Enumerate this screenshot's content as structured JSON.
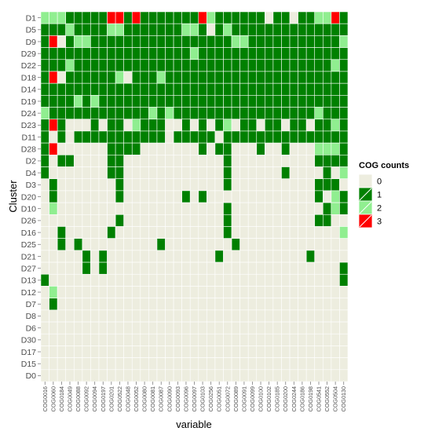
{
  "chart_data": {
    "type": "heatmap",
    "title": "",
    "xlabel": "variable",
    "ylabel": "Cluster",
    "x": [
      "COG0016",
      "COG0060",
      "COG0184",
      "COG0049",
      "COG0088",
      "COG0092",
      "COG0094",
      "COG0197",
      "COG0201",
      "COG0522",
      "COG0048",
      "COG0052",
      "COG0080",
      "COG0081",
      "COG0087",
      "COG0090",
      "COG0093",
      "COG0096",
      "COG0097",
      "COG0103",
      "COG0256",
      "COG0051",
      "COG0072",
      "COG0089",
      "COG0091",
      "COG0099",
      "COG0100",
      "COG0102",
      "COG0185",
      "COG0200",
      "COG0244",
      "COG0186",
      "COG0198",
      "COG0541",
      "COG0552",
      "COG0504",
      "COG0130"
    ],
    "y": [
      "D1",
      "D5",
      "D9",
      "D29",
      "D22",
      "D18",
      "D14",
      "D19",
      "D24",
      "D23",
      "D11",
      "D28",
      "D2",
      "D4",
      "D3",
      "D20",
      "D10",
      "D26",
      "D16",
      "D25",
      "D21",
      "D27",
      "D13",
      "D12",
      "D7",
      "D8",
      "D6",
      "D30",
      "D17",
      "D15",
      "D0"
    ],
    "values": [
      [
        2,
        2,
        2,
        1,
        1,
        1,
        1,
        1,
        3,
        3,
        1,
        3,
        1,
        1,
        1,
        1,
        1,
        1,
        1,
        3,
        2,
        1,
        1,
        1,
        1,
        1,
        1,
        0,
        1,
        1,
        0,
        1,
        1,
        2,
        2,
        3,
        1
      ],
      [
        1,
        1,
        1,
        2,
        1,
        1,
        1,
        1,
        2,
        2,
        1,
        1,
        1,
        1,
        1,
        1,
        1,
        2,
        2,
        1,
        0,
        1,
        2,
        1,
        1,
        1,
        1,
        1,
        1,
        1,
        1,
        1,
        1,
        1,
        1,
        1,
        1
      ],
      [
        1,
        3,
        0,
        1,
        2,
        2,
        1,
        1,
        1,
        1,
        1,
        1,
        1,
        1,
        1,
        1,
        1,
        1,
        1,
        1,
        1,
        1,
        1,
        2,
        2,
        1,
        1,
        1,
        1,
        1,
        1,
        1,
        1,
        1,
        1,
        1,
        2
      ],
      [
        1,
        1,
        1,
        1,
        1,
        1,
        1,
        1,
        1,
        1,
        1,
        1,
        1,
        1,
        1,
        1,
        1,
        1,
        2,
        1,
        1,
        1,
        1,
        1,
        1,
        1,
        1,
        1,
        1,
        1,
        1,
        1,
        1,
        1,
        1,
        1,
        1
      ],
      [
        1,
        1,
        1,
        2,
        1,
        1,
        1,
        1,
        1,
        1,
        1,
        1,
        1,
        1,
        1,
        1,
        1,
        1,
        1,
        1,
        1,
        1,
        1,
        1,
        1,
        1,
        1,
        1,
        1,
        1,
        1,
        1,
        1,
        1,
        1,
        2,
        1
      ],
      [
        1,
        3,
        0,
        1,
        1,
        1,
        1,
        1,
        1,
        2,
        0,
        1,
        1,
        1,
        2,
        1,
        1,
        1,
        1,
        1,
        1,
        1,
        1,
        1,
        1,
        1,
        1,
        1,
        1,
        1,
        1,
        1,
        1,
        1,
        1,
        1,
        1
      ],
      [
        1,
        1,
        1,
        1,
        1,
        1,
        1,
        1,
        1,
        1,
        1,
        1,
        1,
        1,
        1,
        1,
        1,
        1,
        1,
        1,
        1,
        1,
        1,
        1,
        1,
        1,
        1,
        1,
        1,
        1,
        1,
        1,
        1,
        1,
        1,
        1,
        1
      ],
      [
        1,
        1,
        1,
        1,
        2,
        1,
        2,
        1,
        1,
        1,
        1,
        1,
        1,
        1,
        1,
        1,
        1,
        1,
        1,
        1,
        1,
        1,
        1,
        1,
        1,
        1,
        1,
        1,
        1,
        1,
        1,
        1,
        1,
        1,
        1,
        1,
        1
      ],
      [
        2,
        1,
        1,
        1,
        1,
        1,
        1,
        1,
        1,
        1,
        1,
        1,
        1,
        2,
        1,
        2,
        1,
        1,
        1,
        1,
        1,
        1,
        1,
        1,
        1,
        1,
        1,
        1,
        1,
        1,
        1,
        1,
        1,
        2,
        1,
        1,
        1
      ],
      [
        1,
        3,
        1,
        0,
        0,
        0,
        1,
        0,
        1,
        1,
        0,
        2,
        1,
        1,
        1,
        0,
        0,
        1,
        0,
        1,
        0,
        1,
        2,
        0,
        1,
        1,
        0,
        1,
        1,
        0,
        1,
        1,
        0,
        1,
        1,
        2,
        1
      ],
      [
        1,
        0,
        1,
        0,
        1,
        1,
        1,
        1,
        1,
        1,
        1,
        1,
        1,
        1,
        1,
        0,
        1,
        1,
        1,
        1,
        1,
        0,
        1,
        1,
        1,
        1,
        1,
        1,
        1,
        1,
        1,
        1,
        1,
        1,
        1,
        1,
        1
      ],
      [
        1,
        3,
        0,
        0,
        0,
        0,
        0,
        0,
        1,
        1,
        1,
        1,
        0,
        0,
        0,
        0,
        0,
        0,
        0,
        1,
        0,
        1,
        1,
        0,
        0,
        0,
        1,
        0,
        0,
        1,
        0,
        0,
        0,
        2,
        2,
        2,
        1
      ],
      [
        1,
        0,
        1,
        1,
        0,
        0,
        0,
        0,
        1,
        1,
        0,
        0,
        0,
        0,
        0,
        0,
        0,
        0,
        0,
        0,
        0,
        0,
        1,
        0,
        0,
        0,
        0,
        0,
        0,
        0,
        0,
        0,
        0,
        1,
        1,
        1,
        1
      ],
      [
        1,
        0,
        0,
        0,
        0,
        0,
        0,
        0,
        1,
        1,
        0,
        0,
        0,
        0,
        0,
        0,
        0,
        0,
        0,
        0,
        0,
        0,
        1,
        0,
        0,
        0,
        0,
        0,
        0,
        1,
        0,
        0,
        0,
        0,
        1,
        0,
        2
      ],
      [
        0,
        1,
        0,
        0,
        0,
        0,
        0,
        0,
        0,
        1,
        0,
        0,
        0,
        0,
        0,
        0,
        0,
        0,
        0,
        0,
        0,
        0,
        1,
        0,
        0,
        0,
        0,
        0,
        0,
        0,
        0,
        0,
        0,
        1,
        1,
        1,
        0
      ],
      [
        0,
        1,
        0,
        0,
        0,
        0,
        0,
        0,
        0,
        1,
        0,
        0,
        0,
        0,
        0,
        0,
        0,
        1,
        0,
        1,
        0,
        0,
        0,
        0,
        0,
        0,
        0,
        0,
        0,
        0,
        0,
        0,
        0,
        1,
        0,
        2,
        1
      ],
      [
        0,
        2,
        0,
        0,
        0,
        0,
        0,
        0,
        0,
        0,
        0,
        0,
        0,
        0,
        0,
        0,
        0,
        0,
        0,
        0,
        0,
        0,
        1,
        0,
        0,
        0,
        0,
        0,
        0,
        0,
        0,
        0,
        0,
        0,
        1,
        2,
        1
      ],
      [
        0,
        0,
        0,
        0,
        0,
        0,
        0,
        0,
        0,
        1,
        0,
        0,
        0,
        0,
        0,
        0,
        0,
        0,
        0,
        0,
        0,
        0,
        1,
        0,
        0,
        0,
        0,
        0,
        0,
        0,
        0,
        0,
        0,
        1,
        1,
        0,
        0
      ],
      [
        0,
        0,
        1,
        0,
        0,
        0,
        0,
        0,
        1,
        0,
        0,
        0,
        0,
        0,
        0,
        0,
        0,
        0,
        0,
        0,
        0,
        0,
        1,
        0,
        0,
        0,
        0,
        0,
        0,
        0,
        0,
        0,
        0,
        0,
        0,
        0,
        2
      ],
      [
        0,
        0,
        1,
        0,
        1,
        0,
        0,
        0,
        0,
        0,
        0,
        0,
        0,
        0,
        1,
        0,
        0,
        0,
        0,
        0,
        0,
        0,
        0,
        1,
        0,
        0,
        0,
        0,
        0,
        0,
        0,
        0,
        0,
        0,
        0,
        0,
        0
      ],
      [
        0,
        0,
        0,
        0,
        0,
        1,
        0,
        1,
        0,
        0,
        0,
        0,
        0,
        0,
        0,
        0,
        0,
        0,
        0,
        0,
        0,
        1,
        0,
        0,
        0,
        0,
        0,
        0,
        0,
        0,
        0,
        0,
        1,
        0,
        0,
        0,
        0
      ],
      [
        0,
        0,
        0,
        0,
        0,
        1,
        0,
        1,
        0,
        0,
        0,
        0,
        0,
        0,
        0,
        0,
        0,
        0,
        0,
        0,
        0,
        0,
        0,
        0,
        0,
        0,
        0,
        0,
        0,
        0,
        0,
        0,
        0,
        0,
        0,
        0,
        1
      ],
      [
        1,
        0,
        0,
        0,
        0,
        0,
        0,
        0,
        0,
        0,
        0,
        0,
        0,
        0,
        0,
        0,
        0,
        0,
        0,
        0,
        0,
        0,
        0,
        0,
        0,
        0,
        0,
        0,
        0,
        0,
        0,
        0,
        0,
        0,
        0,
        0,
        1
      ],
      [
        0,
        2,
        0,
        0,
        0,
        0,
        0,
        0,
        0,
        0,
        0,
        0,
        0,
        0,
        0,
        0,
        0,
        0,
        0,
        0,
        0,
        0,
        0,
        0,
        0,
        0,
        0,
        0,
        0,
        0,
        0,
        0,
        0,
        0,
        0,
        0,
        0
      ],
      [
        0,
        1,
        0,
        0,
        0,
        0,
        0,
        0,
        0,
        0,
        0,
        0,
        0,
        0,
        0,
        0,
        0,
        0,
        0,
        0,
        0,
        0,
        0,
        0,
        0,
        0,
        0,
        0,
        0,
        0,
        0,
        0,
        0,
        0,
        0,
        0,
        0
      ],
      [
        0,
        0,
        0,
        0,
        0,
        0,
        0,
        0,
        0,
        0,
        0,
        0,
        0,
        0,
        0,
        0,
        0,
        0,
        0,
        0,
        0,
        0,
        0,
        0,
        0,
        0,
        0,
        0,
        0,
        0,
        0,
        0,
        0,
        0,
        0,
        0,
        0
      ],
      [
        0,
        0,
        0,
        0,
        0,
        0,
        0,
        0,
        0,
        0,
        0,
        0,
        0,
        0,
        0,
        0,
        0,
        0,
        0,
        0,
        0,
        0,
        0,
        0,
        0,
        0,
        0,
        0,
        0,
        0,
        0,
        0,
        0,
        0,
        0,
        0,
        0
      ],
      [
        0,
        0,
        0,
        0,
        0,
        0,
        0,
        0,
        0,
        0,
        0,
        0,
        0,
        0,
        0,
        0,
        0,
        0,
        0,
        0,
        0,
        0,
        0,
        0,
        0,
        0,
        0,
        0,
        0,
        0,
        0,
        0,
        0,
        0,
        0,
        0,
        0
      ],
      [
        0,
        0,
        0,
        0,
        0,
        0,
        0,
        0,
        0,
        0,
        0,
        0,
        0,
        0,
        0,
        0,
        0,
        0,
        0,
        0,
        0,
        0,
        0,
        0,
        0,
        0,
        0,
        0,
        0,
        0,
        0,
        0,
        0,
        0,
        0,
        0,
        0
      ],
      [
        0,
        0,
        0,
        0,
        0,
        0,
        0,
        0,
        0,
        0,
        0,
        0,
        0,
        0,
        0,
        0,
        0,
        0,
        0,
        0,
        0,
        0,
        0,
        0,
        0,
        0,
        0,
        0,
        0,
        0,
        0,
        0,
        0,
        0,
        0,
        0,
        0
      ],
      [
        0,
        0,
        0,
        0,
        0,
        0,
        0,
        0,
        0,
        0,
        0,
        0,
        0,
        0,
        0,
        0,
        0,
        0,
        0,
        0,
        0,
        0,
        0,
        0,
        0,
        0,
        0,
        0,
        0,
        0,
        0,
        0,
        0,
        0,
        0,
        0,
        0
      ]
    ],
    "legend": {
      "title": "COG counts",
      "placement": "right",
      "levels": [
        {
          "label": "0",
          "value": 0
        },
        {
          "label": "1",
          "value": 1
        },
        {
          "label": "2",
          "value": 2
        },
        {
          "label": "3",
          "value": 3
        }
      ]
    },
    "colors": {
      "0": "#ededdf",
      "1": "#008000",
      "2": "#90ee90",
      "3": "#ff0000",
      "panel": "#ebebde",
      "grid": "#ffffff",
      "tick_text": "#4d4d4d"
    },
    "grid": true
  }
}
